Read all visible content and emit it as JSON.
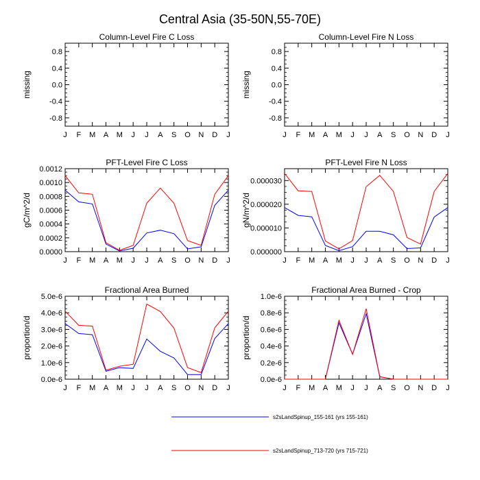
{
  "figure_title": "Central Asia (35-50N,55-70E)",
  "colors": {
    "series_a": "#0000ff",
    "series_b": "#ff0000",
    "axis": "#000000"
  },
  "legend": {
    "entries": [
      {
        "label": "s2sLandSpinup_155-161 (yrs 155-161)",
        "color": "#0000ff"
      },
      {
        "label": "s2sLandSpinup_713-720 (yrs 715-721)",
        "color": "#ff0000"
      }
    ]
  },
  "chart_data": [
    {
      "type": "line",
      "title": "Column-Level Fire C Loss",
      "ylabel": "missing",
      "categories": [
        "J",
        "F",
        "M",
        "A",
        "M",
        "J",
        "J",
        "A",
        "S",
        "O",
        "N",
        "D",
        "J"
      ],
      "ylim": [
        -1.0,
        1.0
      ],
      "yticks": [
        -0.8,
        -0.4,
        0.0,
        0.4,
        0.8
      ],
      "ytick_labels": [
        "-0.8",
        "-0.4",
        "0.0",
        "0.4",
        "0.8"
      ],
      "series": []
    },
    {
      "type": "line",
      "title": "Column-Level Fire N Loss",
      "ylabel": "missing",
      "categories": [
        "J",
        "F",
        "M",
        "A",
        "M",
        "J",
        "J",
        "A",
        "S",
        "O",
        "N",
        "D",
        "J"
      ],
      "ylim": [
        -1.0,
        1.0
      ],
      "yticks": [
        -0.8,
        -0.4,
        0.0,
        0.4,
        0.8
      ],
      "ytick_labels": [
        "-0.8",
        "-0.4",
        "0.0",
        "0.4",
        "0.8"
      ],
      "series": []
    },
    {
      "type": "line",
      "title": "PFT-Level Fire C Loss",
      "ylabel": "gC/m^2/d",
      "categories": [
        "J",
        "F",
        "M",
        "A",
        "M",
        "J",
        "J",
        "A",
        "S",
        "O",
        "N",
        "D",
        "J"
      ],
      "ylim": [
        0,
        0.0012
      ],
      "yticks": [
        0,
        0.0002,
        0.0004,
        0.0006,
        0.0008,
        0.001,
        0.0012
      ],
      "ytick_labels": [
        "0.0000",
        "0.0002",
        "0.0004",
        "0.0006",
        "0.0008",
        "0.0010",
        "0.0012"
      ],
      "series": [
        {
          "values": [
            0.00089,
            0.00072,
            0.00069,
            0.00011,
            1e-05,
            5e-05,
            0.00027,
            0.00031,
            0.00026,
            4e-05,
            7e-05,
            0.00067,
            0.00089
          ],
          "color": "#0000ff"
        },
        {
          "values": [
            0.0011,
            0.00085,
            0.00083,
            0.00013,
            2e-05,
            9e-05,
            0.0007,
            0.00092,
            0.0007,
            0.00016,
            9e-05,
            0.00083,
            0.0011
          ],
          "color": "#ff0000"
        }
      ]
    },
    {
      "type": "line",
      "title": "PFT-Level Fire N Loss",
      "ylabel": "gN/m^2/d",
      "categories": [
        "J",
        "F",
        "M",
        "A",
        "M",
        "J",
        "J",
        "A",
        "S",
        "O",
        "N",
        "D",
        "J"
      ],
      "ylim": [
        0,
        3.5e-05
      ],
      "yticks": [
        0,
        1e-05,
        2e-05,
        3e-05
      ],
      "ytick_labels": [
        "0.000000",
        "0.000010",
        "0.000020",
        "0.000030"
      ],
      "series": [
        {
          "values": [
            1.86e-05,
            1.53e-05,
            1.47e-05,
            2.6e-06,
            4e-07,
            2.1e-06,
            8.6e-06,
            8.6e-06,
            7.1e-06,
            1.3e-06,
            1.6e-06,
            1.46e-05,
            1.86e-05
          ],
          "color": "#0000ff"
        },
        {
          "values": [
            3.3e-05,
            2.57e-05,
            2.54e-05,
            4.5e-06,
            1.2e-06,
            4.7e-06,
            2.74e-05,
            3.22e-05,
            2.54e-05,
            6e-06,
            3.2e-06,
            2.54e-05,
            3.3e-05
          ],
          "color": "#ff0000"
        }
      ]
    },
    {
      "type": "line",
      "title": "Fractional Area Burned",
      "ylabel": "proportion/d",
      "categories": [
        "J",
        "F",
        "M",
        "A",
        "M",
        "J",
        "J",
        "A",
        "S",
        "O",
        "N",
        "D",
        "J"
      ],
      "ylim": [
        0,
        5e-06
      ],
      "yticks": [
        0,
        1e-06,
        2e-06,
        3e-06,
        4e-06,
        5e-06
      ],
      "ytick_labels": [
        "0.0e-6",
        "1.0e-6",
        "2.0e-6",
        "3.0e-6",
        "4.0e-6",
        "5.0e-6"
      ],
      "series": [
        {
          "values": [
            3.35e-06,
            2.75e-06,
            2.68e-06,
            4.8e-07,
            7e-07,
            6.5e-07,
            2.42e-06,
            1.68e-06,
            1.28e-06,
            2.8e-07,
            2.8e-07,
            2.45e-06,
            3.35e-06
          ],
          "color": "#0000ff"
        },
        {
          "values": [
            4.1e-06,
            3.25e-06,
            3.2e-06,
            5.5e-07,
            7.8e-07,
            9e-07,
            4.53e-06,
            4.08e-06,
            3.08e-06,
            7e-07,
            4e-07,
            3.1e-06,
            4.1e-06
          ],
          "color": "#ff0000"
        }
      ]
    },
    {
      "type": "line",
      "title": "Fractional Area Burned - Crop",
      "ylabel": "proportion/d",
      "categories": [
        "J",
        "F",
        "M",
        "A",
        "M",
        "J",
        "J",
        "A",
        "S",
        "O",
        "N",
        "D",
        "J"
      ],
      "ylim": [
        0,
        1e-06
      ],
      "yticks": [
        0,
        2e-07,
        4e-07,
        6e-07,
        8e-07,
        1e-06
      ],
      "ytick_labels": [
        "0.0e-6",
        "0.2e-6",
        "0.4e-6",
        "0.6e-6",
        "0.8e-6",
        "1.0e-6"
      ],
      "series": [
        {
          "values": [
            0,
            0,
            0,
            0,
            6.8e-07,
            3e-07,
            7.9e-07,
            3e-08,
            0,
            0,
            0,
            0,
            0
          ],
          "color": "#0000ff"
        },
        {
          "values": [
            0,
            0,
            0,
            0,
            7.1e-07,
            3e-07,
            8.5e-07,
            3e-08,
            0,
            0,
            0,
            0,
            0
          ],
          "color": "#ff0000"
        }
      ]
    }
  ]
}
